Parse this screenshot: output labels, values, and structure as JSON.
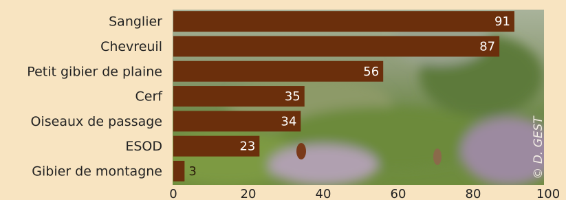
{
  "chart_data": {
    "type": "barh",
    "categories": [
      "Sanglier",
      "Chevreuil",
      "Petit gibier de plaine",
      "Cerf",
      "Oiseaux de passage",
      "ESOD",
      "Gibier de montagne"
    ],
    "values": [
      91,
      87,
      56,
      35,
      34,
      23,
      3
    ],
    "color": "#6b2f0c",
    "xlim": [
      0,
      100
    ],
    "xticks": [
      0,
      20,
      40,
      60,
      80,
      100
    ],
    "grid": false,
    "credit": "© D. GEST"
  }
}
